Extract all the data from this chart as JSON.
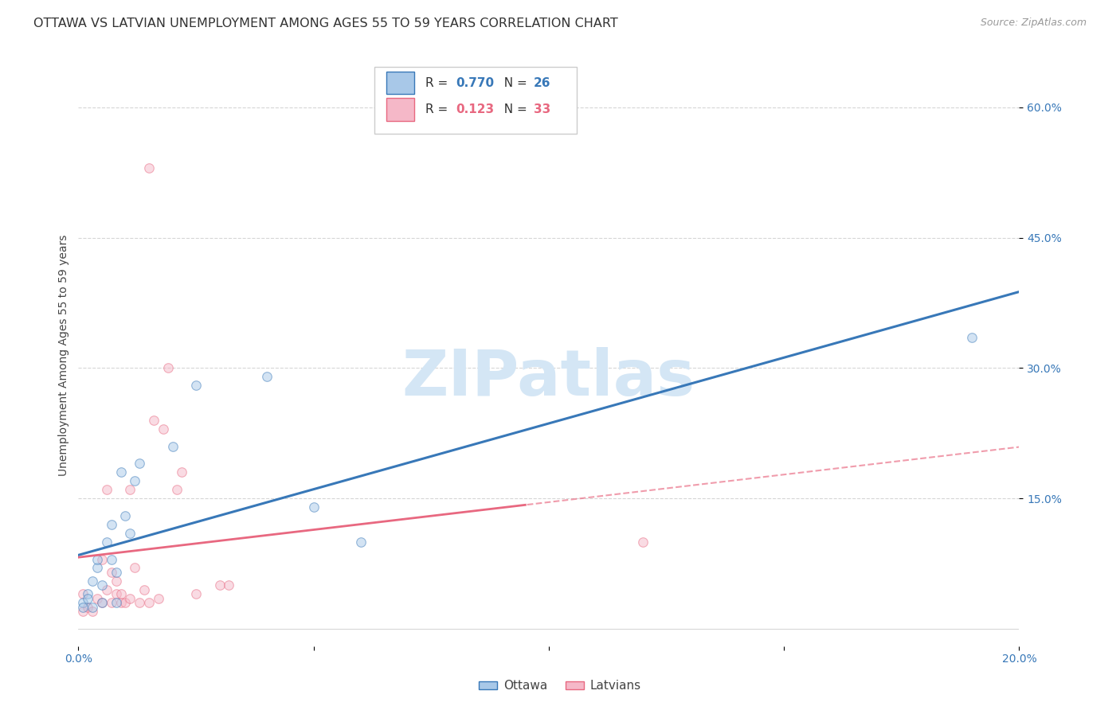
{
  "title": "OTTAWA VS LATVIAN UNEMPLOYMENT AMONG AGES 55 TO 59 YEARS CORRELATION CHART",
  "source_text": "Source: ZipAtlas.com",
  "ylabel": "Unemployment Among Ages 55 to 59 years",
  "background_color": "#ffffff",
  "grid_color": "#cccccc",
  "watermark_text": "ZIPatlas",
  "watermark_color": "#d4e6f5",
  "ottawa_R": 0.77,
  "ottawa_N": 26,
  "latvian_R": 0.123,
  "latvian_N": 33,
  "ottawa_color": "#a8c8e8",
  "latvian_color": "#f5b8c8",
  "ottawa_line_color": "#3878b8",
  "latvian_line_color": "#e86880",
  "x_min": 0.0,
  "x_max": 0.2,
  "y_min": -0.02,
  "y_max": 0.65,
  "x_ticks": [
    0.0,
    0.05,
    0.1,
    0.15,
    0.2
  ],
  "x_tick_labels": [
    "0.0%",
    "",
    "",
    "",
    "20.0%"
  ],
  "y_ticks": [
    0.15,
    0.3,
    0.45,
    0.6
  ],
  "y_tick_labels": [
    "15.0%",
    "30.0%",
    "45.0%",
    "60.0%"
  ],
  "ottawa_x": [
    0.001,
    0.001,
    0.002,
    0.002,
    0.003,
    0.003,
    0.004,
    0.004,
    0.005,
    0.005,
    0.006,
    0.007,
    0.007,
    0.008,
    0.008,
    0.009,
    0.01,
    0.011,
    0.012,
    0.013,
    0.02,
    0.025,
    0.04,
    0.05,
    0.06,
    0.19
  ],
  "ottawa_y": [
    0.03,
    0.025,
    0.04,
    0.035,
    0.025,
    0.055,
    0.07,
    0.08,
    0.03,
    0.05,
    0.1,
    0.08,
    0.12,
    0.03,
    0.065,
    0.18,
    0.13,
    0.11,
    0.17,
    0.19,
    0.21,
    0.28,
    0.29,
    0.14,
    0.1,
    0.335
  ],
  "latvian_x": [
    0.001,
    0.001,
    0.002,
    0.003,
    0.004,
    0.005,
    0.005,
    0.006,
    0.006,
    0.007,
    0.007,
    0.008,
    0.008,
    0.009,
    0.009,
    0.01,
    0.011,
    0.011,
    0.012,
    0.013,
    0.014,
    0.015,
    0.016,
    0.017,
    0.018,
    0.019,
    0.021,
    0.022,
    0.025,
    0.03,
    0.032,
    0.12,
    0.015
  ],
  "latvian_y": [
    0.02,
    0.04,
    0.025,
    0.02,
    0.035,
    0.03,
    0.08,
    0.045,
    0.16,
    0.03,
    0.065,
    0.04,
    0.055,
    0.03,
    0.04,
    0.03,
    0.035,
    0.16,
    0.07,
    0.03,
    0.045,
    0.03,
    0.24,
    0.035,
    0.23,
    0.3,
    0.16,
    0.18,
    0.04,
    0.05,
    0.05,
    0.1,
    0.53
  ],
  "legend_labels": [
    "Ottawa",
    "Latvians"
  ],
  "title_fontsize": 11.5,
  "axis_label_fontsize": 10,
  "tick_fontsize": 10,
  "legend_fontsize": 11,
  "source_fontsize": 9,
  "marker_size": 70,
  "marker_alpha": 0.5,
  "lat_line_split_x": 0.095
}
